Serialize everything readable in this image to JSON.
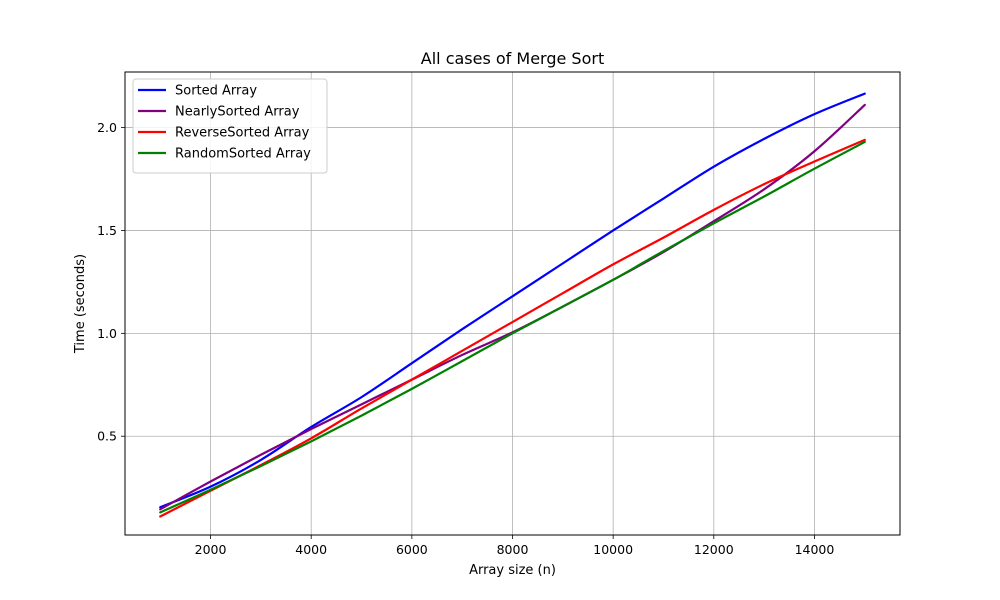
{
  "chart_data": {
    "type": "line",
    "title": "All cases of Merge Sort",
    "xlabel": "Array size (n)",
    "ylabel": "Time (seconds)",
    "xlim": [
      300,
      15700
    ],
    "ylim": [
      0.02,
      2.27
    ],
    "xticks": [
      2000,
      4000,
      6000,
      8000,
      10000,
      12000,
      14000
    ],
    "xtick_labels": [
      "2000",
      "4000",
      "6000",
      "8000",
      "10000",
      "12000",
      "14000"
    ],
    "yticks": [
      0.5,
      1.0,
      1.5,
      2.0
    ],
    "ytick_labels": [
      "0.5",
      "1.0",
      "1.5",
      "2.0"
    ],
    "grid": true,
    "legend_position": "top-left",
    "x": [
      1000,
      2000,
      3000,
      4000,
      5000,
      6000,
      7000,
      8000,
      9000,
      10000,
      11000,
      12000,
      13000,
      14000,
      15000
    ],
    "series": [
      {
        "name": "Sorted Array",
        "color": "#0000ff",
        "values": [
          0.155,
          0.255,
          0.385,
          0.545,
          0.69,
          0.855,
          1.02,
          1.18,
          1.34,
          1.5,
          1.655,
          1.81,
          1.945,
          2.065,
          2.165
        ]
      },
      {
        "name": "NearlySorted Array",
        "color": "#800080",
        "values": [
          0.145,
          0.28,
          0.41,
          0.535,
          0.655,
          0.775,
          0.895,
          1.005,
          1.13,
          1.26,
          1.395,
          1.545,
          1.7,
          1.885,
          2.11
        ]
      },
      {
        "name": "ReverseSorted Array",
        "color": "#ff0000",
        "values": [
          0.11,
          0.235,
          0.36,
          0.49,
          0.635,
          0.775,
          0.915,
          1.055,
          1.195,
          1.335,
          1.465,
          1.6,
          1.725,
          1.835,
          1.94
        ]
      },
      {
        "name": "RandomSorted Array",
        "color": "#008000",
        "values": [
          0.13,
          0.24,
          0.355,
          0.475,
          0.6,
          0.73,
          0.865,
          1.0,
          1.13,
          1.26,
          1.4,
          1.535,
          1.665,
          1.8,
          1.93
        ]
      }
    ]
  }
}
